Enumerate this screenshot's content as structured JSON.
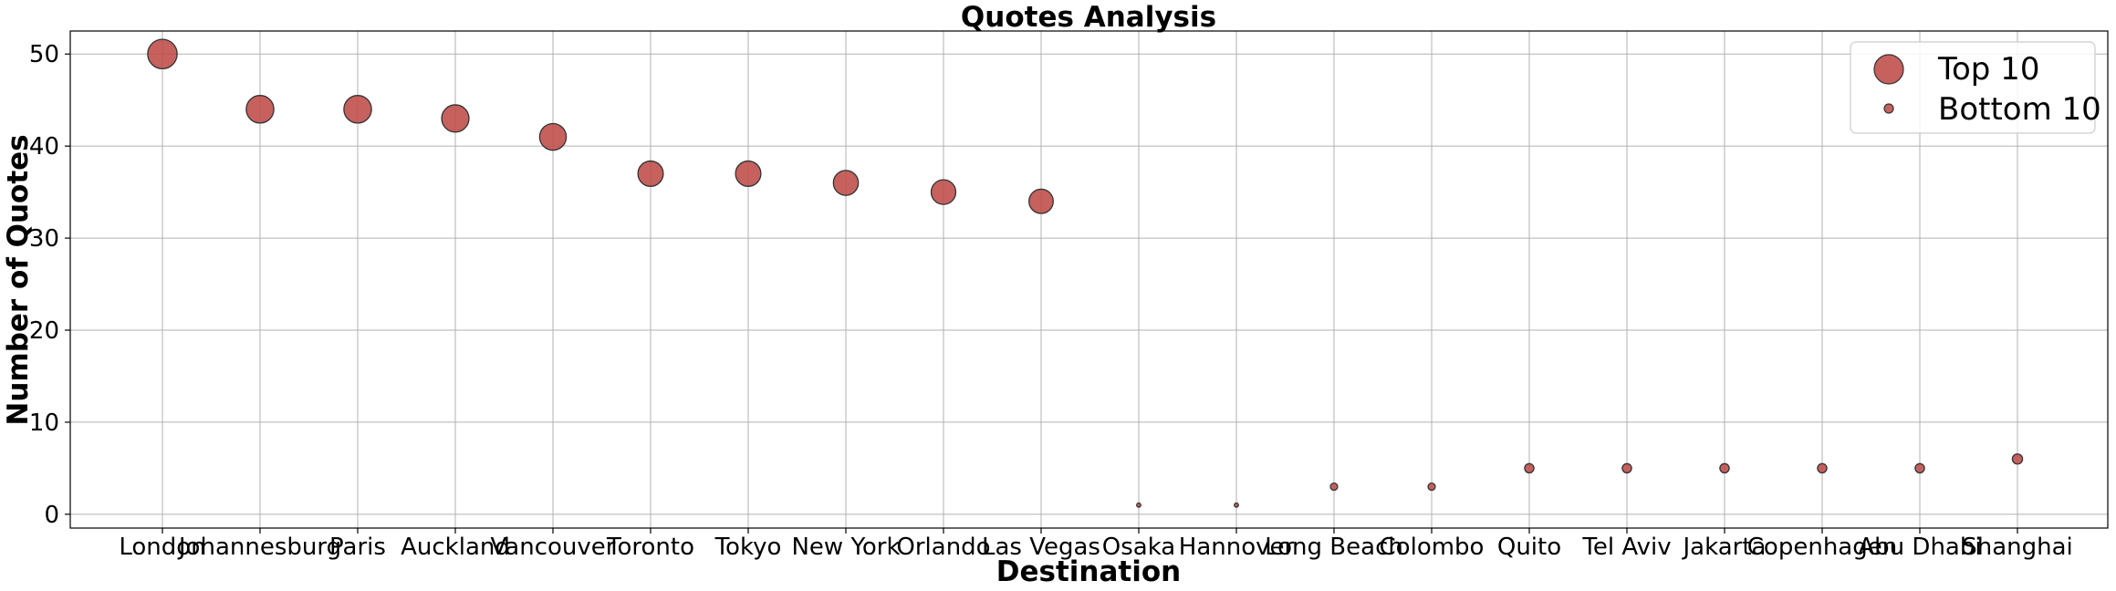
{
  "chart_data": {
    "type": "scatter",
    "title": "Quotes Analysis",
    "xlabel": "Destination",
    "ylabel": "Number of Quotes",
    "ylim": [
      -1.5,
      52.5
    ],
    "yticks": [
      0,
      10,
      20,
      30,
      40,
      50
    ],
    "grid": true,
    "legend_position": "top-right",
    "marker_color": "#c0504d",
    "marker_edge_color": "#333333",
    "categories": [
      "London",
      "Johannesburg",
      "Paris",
      "Auckland",
      "Vancouver",
      "Toronto",
      "Tokyo",
      "New York",
      "Orlando",
      "Las Vegas",
      "Osaka",
      "Hannover",
      "Long Beach",
      "Colombo",
      "Quito",
      "Tel Aviv",
      "Jakarta",
      "Copenhagen",
      "Abu Dhabi",
      "Shanghai"
    ],
    "series": [
      {
        "name": "Top 10",
        "x": [
          "London",
          "Johannesburg",
          "Paris",
          "Auckland",
          "Vancouver",
          "Toronto",
          "Tokyo",
          "New York",
          "Orlando",
          "Las Vegas"
        ],
        "values": [
          50,
          44,
          44,
          43,
          41,
          37,
          37,
          36,
          35,
          34
        ]
      },
      {
        "name": "Bottom 10",
        "x": [
          "Osaka",
          "Hannover",
          "Long Beach",
          "Colombo",
          "Quito",
          "Tel Aviv",
          "Jakarta",
          "Copenhagen",
          "Abu Dhabi",
          "Shanghai"
        ],
        "values": [
          1,
          1,
          3,
          3,
          5,
          5,
          5,
          5,
          5,
          6
        ]
      }
    ]
  }
}
